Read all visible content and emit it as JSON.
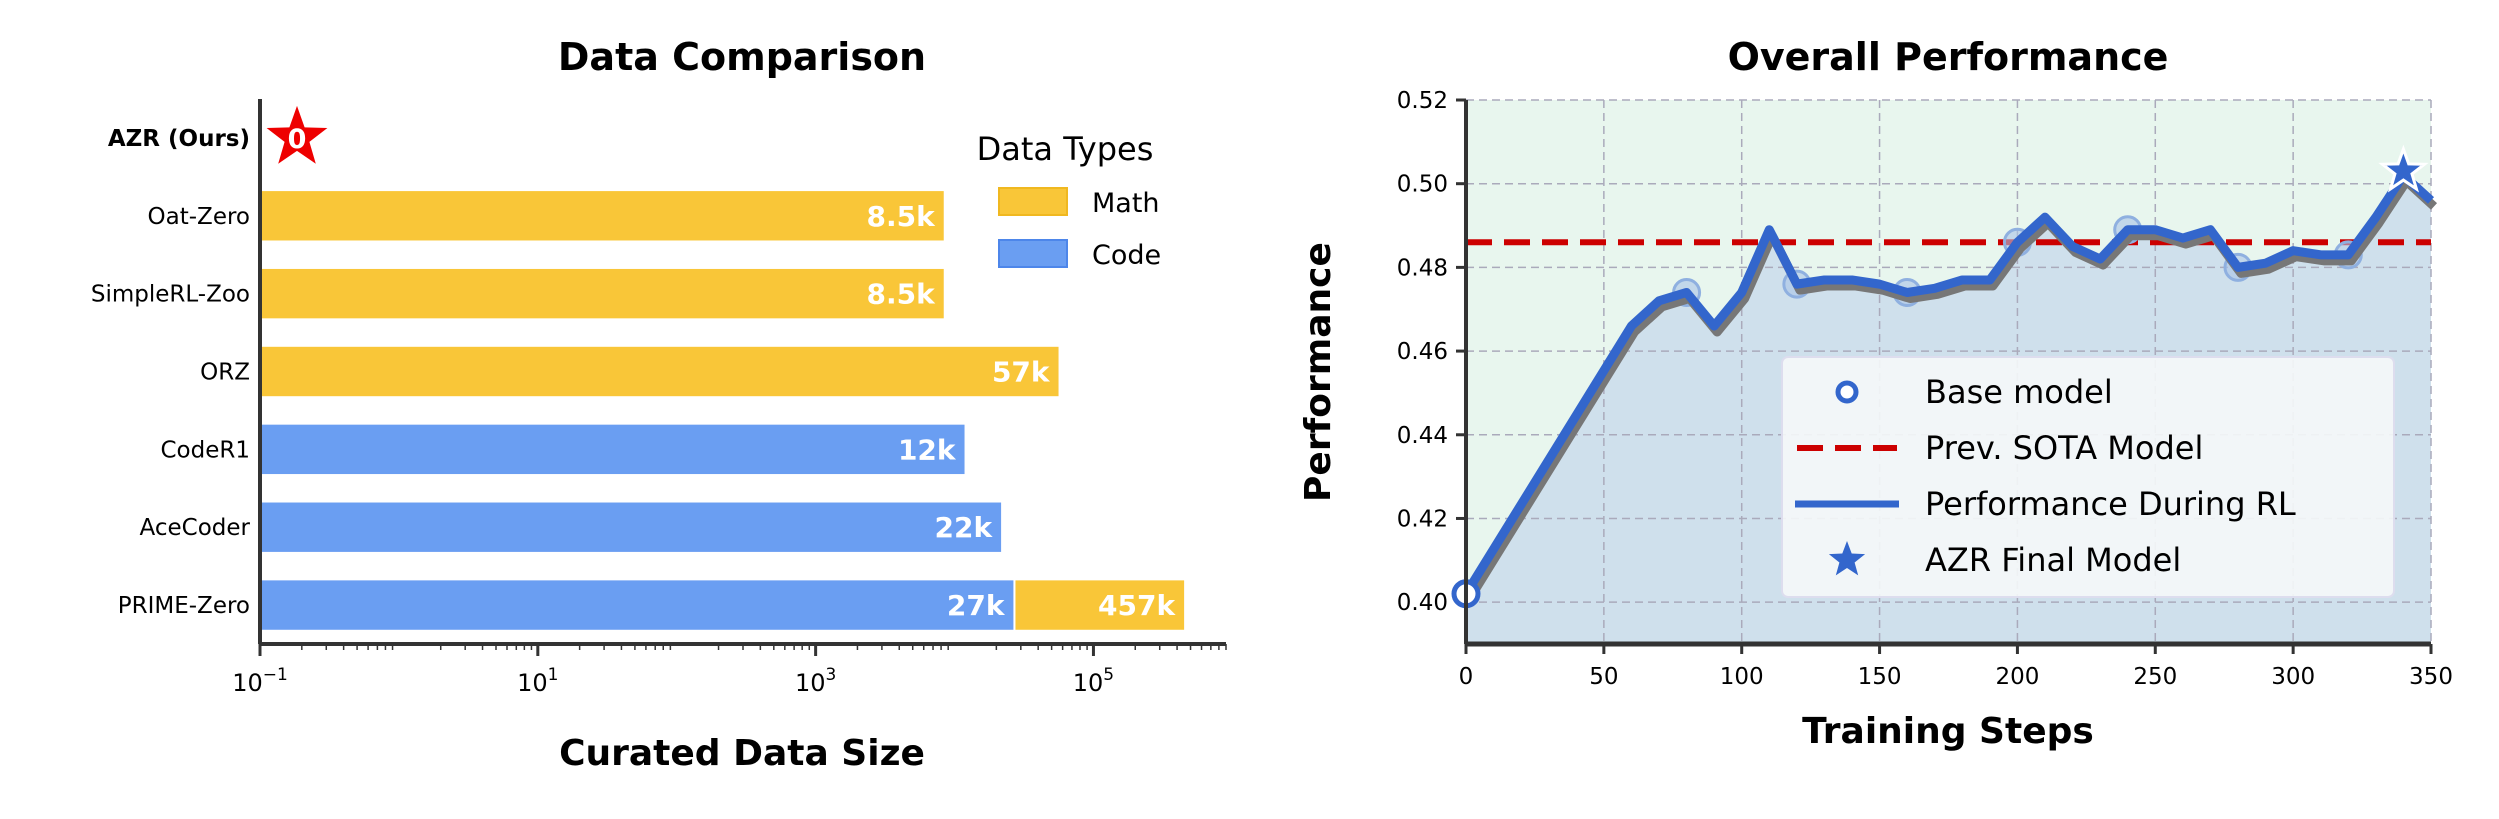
{
  "chart_data": [
    {
      "type": "bar",
      "orientation": "horizontal",
      "title": "Data Comparison",
      "xlabel": "Curated Data Size",
      "ylabel": "",
      "x_scale": "log",
      "xlim": [
        0.1,
        900000
      ],
      "x_ticks": [
        {
          "value": 0.1,
          "base": "10",
          "exp": "−1"
        },
        {
          "value": 10,
          "base": "10",
          "exp": "1"
        },
        {
          "value": 1000,
          "base": "10",
          "exp": "3"
        },
        {
          "value": 100000,
          "base": "10",
          "exp": "5"
        }
      ],
      "legend": {
        "title": "Data Types",
        "position": "top-right",
        "entries": [
          {
            "name": "Math",
            "color": "#f9c638"
          },
          {
            "name": "Code",
            "color": "#6a9ef2"
          }
        ]
      },
      "categories": [
        "AZR (Ours)",
        "Oat-Zero",
        "SimpleRL-Zoo",
        "ORZ",
        "CodeR1",
        "AceCoder",
        "PRIME-Zero"
      ],
      "bars": [
        {
          "category": "AZR (Ours)",
          "segments": [],
          "marker": "star",
          "marker_label": "0",
          "marker_color": "#ee0000"
        },
        {
          "category": "Oat-Zero",
          "segments": [
            {
              "type": "Math",
              "value": 8500,
              "label": "8.5k"
            }
          ]
        },
        {
          "category": "SimpleRL-Zoo",
          "segments": [
            {
              "type": "Math",
              "value": 8500,
              "label": "8.5k"
            }
          ]
        },
        {
          "category": "ORZ",
          "segments": [
            {
              "type": "Math",
              "value": 57000,
              "label": "57k"
            }
          ]
        },
        {
          "category": "CodeR1",
          "segments": [
            {
              "type": "Code",
              "value": 12000,
              "label": "12k"
            }
          ]
        },
        {
          "category": "AceCoder",
          "segments": [
            {
              "type": "Code",
              "value": 22000,
              "label": "22k"
            }
          ]
        },
        {
          "category": "PRIME-Zero",
          "segments": [
            {
              "type": "Code",
              "value": 27000,
              "label": "27k"
            },
            {
              "type": "Math",
              "value": 457000,
              "label": "457k"
            }
          ]
        }
      ]
    },
    {
      "type": "line",
      "title": "Overall Performance",
      "xlabel": "Training Steps",
      "ylabel": "Performance",
      "xlim": [
        0,
        350
      ],
      "ylim": [
        0.39,
        0.52
      ],
      "x_ticks": [
        0,
        50,
        100,
        150,
        200,
        250,
        300,
        350
      ],
      "y_ticks": [
        "0.40",
        "0.42",
        "0.44",
        "0.46",
        "0.48",
        "0.50",
        "0.52"
      ],
      "grid": true,
      "legend_position": "center-right",
      "series": [
        {
          "name": "Performance During RL",
          "color": "#3366cc",
          "x": [
            0,
            60,
            70,
            80,
            90,
            100,
            110,
            120,
            130,
            140,
            150,
            160,
            170,
            180,
            190,
            200,
            210,
            220,
            230,
            240,
            250,
            260,
            270,
            280,
            290,
            300,
            310,
            320,
            330,
            340,
            350
          ],
          "y": [
            0.402,
            0.466,
            0.472,
            0.474,
            0.466,
            0.474,
            0.489,
            0.476,
            0.477,
            0.477,
            0.476,
            0.474,
            0.475,
            0.477,
            0.477,
            0.486,
            0.492,
            0.485,
            0.482,
            0.489,
            0.489,
            0.487,
            0.489,
            0.48,
            0.481,
            0.484,
            0.483,
            0.483,
            0.492,
            0.502,
            0.496
          ]
        },
        {
          "name": "Base model",
          "color": "#3366cc",
          "x": [
            0
          ],
          "y": [
            0.402
          ]
        },
        {
          "name": "Prev. SOTA Model",
          "color": "#cc0000",
          "y_const": 0.486
        },
        {
          "name": "AZR Final Model",
          "color": "#3366cc",
          "x": [
            340
          ],
          "y": [
            0.503
          ]
        }
      ],
      "checkpoint_markers": {
        "x": [
          80,
          120,
          160,
          200,
          240,
          280,
          320
        ],
        "y": [
          0.474,
          0.476,
          0.474,
          0.486,
          0.489,
          0.48,
          0.483
        ]
      },
      "colors": {
        "above_fill": "#e8f6ee",
        "below_fill": "#cfe0ec"
      }
    }
  ]
}
